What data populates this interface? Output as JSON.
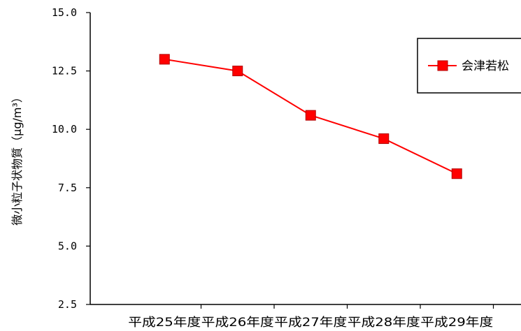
{
  "chart_data": {
    "type": "line",
    "categories": [
      "平成25年度",
      "平成26年度",
      "平成27年度",
      "平成28年度",
      "平成29年度"
    ],
    "series": [
      {
        "name": "会津若松",
        "values": [
          13.0,
          12.5,
          10.6,
          9.6,
          8.1
        ],
        "color": "#ff0000",
        "marker": "square"
      }
    ],
    "yticks": [
      "2.5",
      "5.0",
      "7.5",
      "10.0",
      "12.5",
      "15.0"
    ],
    "ylim": [
      2.5,
      15.0
    ],
    "ylabel": "微小粒子状物質（μg/m³）",
    "xlabel": "",
    "grid": false,
    "legend_position": "top-right"
  }
}
